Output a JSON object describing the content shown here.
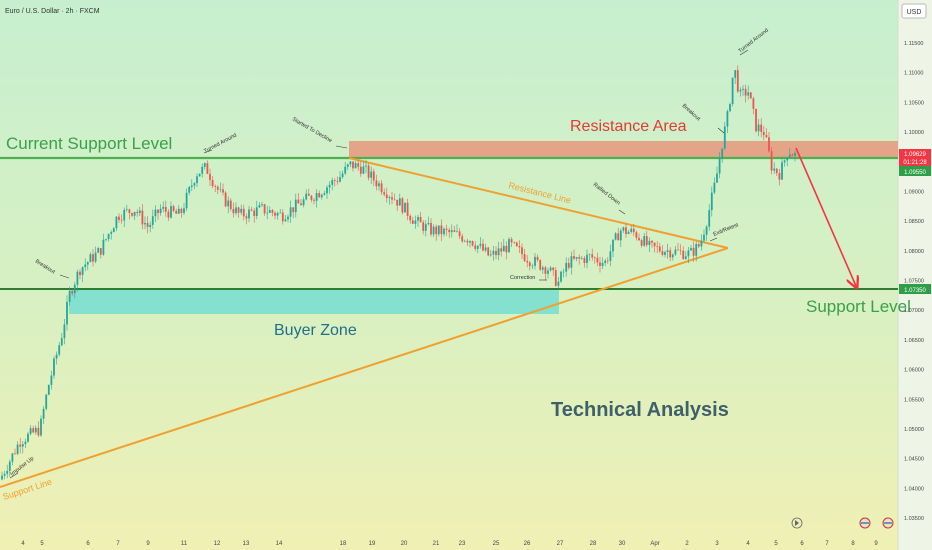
{
  "header": {
    "symbol_title": "Euro / U.S. Dollar · 2h · FXCM",
    "currency": "USD"
  },
  "chart_data": {
    "type": "candlestick",
    "y_axis": {
      "ylim": [
        1.0325,
        1.1195
      ],
      "ticks": [
        "1.11500",
        "1.11000",
        "1.10500",
        "1.10000",
        "1.09500",
        "1.09000",
        "1.08500",
        "1.08000",
        "1.07500",
        "1.07000",
        "1.06500",
        "1.06000",
        "1.05500",
        "1.05000",
        "1.04500",
        "1.04000",
        "1.03500"
      ],
      "price_tags": [
        {
          "value": "1.09629",
          "sub": "01:21:28",
          "color": "#f23645"
        },
        {
          "value": "1.09550",
          "color": "#2e9e47"
        },
        {
          "value": "1.07350",
          "color": "#2e9e47"
        }
      ]
    },
    "x_axis": {
      "ticks": [
        "4",
        "5",
        "6",
        "7",
        "9",
        "11",
        "12",
        "13",
        "14",
        "18",
        "19",
        "20",
        "21",
        "23",
        "25",
        "26",
        "27",
        "28",
        "30",
        "Apr",
        "2",
        "3",
        "4",
        "5",
        "6",
        "7",
        "8",
        "9",
        "10"
      ]
    },
    "levels": [
      {
        "name": "Current Support Level",
        "price": 1.0955,
        "color": "#4caf50"
      },
      {
        "name": "Support Level",
        "price": 1.0735,
        "color": "#4caf50"
      }
    ],
    "zones": [
      {
        "name": "Resistance Area",
        "from": 1.0955,
        "to": 1.0985,
        "color": "#e8967c"
      },
      {
        "name": "Buyer Zone",
        "from": 1.069,
        "to": 1.0735,
        "color": "#7fdfd0"
      }
    ],
    "trend_lines": [
      "Resistance Line",
      "Support Line"
    ],
    "annotations": [
      "Turned Around",
      "Started To Decline",
      "Breakout",
      "Impulse Up",
      "Correction",
      "Rallied Down",
      "Exit/Retest",
      "Breakout",
      "Turned Around"
    ],
    "main_label": "Technical Analysis"
  }
}
